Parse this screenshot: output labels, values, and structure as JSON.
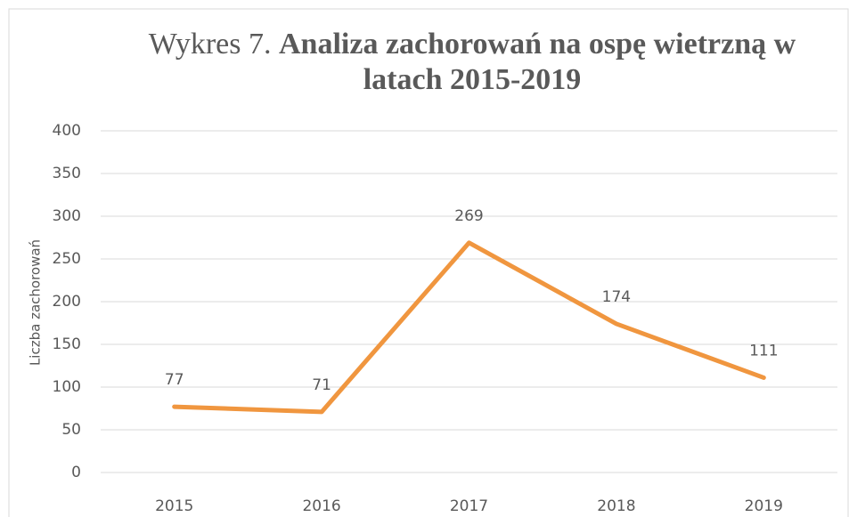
{
  "chart_data": {
    "type": "line",
    "title": [
      "Wykres 7.",
      "Analiza zachorowań na ospę wietrzną w latach 2015-2019"
    ],
    "ylabel": "Liczba zachorowań",
    "categories": [
      "2015",
      "2016",
      "2017",
      "2018",
      "2019"
    ],
    "series": [
      {
        "name": "Liczba zachorowań",
        "color": "#f0963f",
        "values": [
          77,
          71,
          269,
          174,
          111
        ]
      }
    ],
    "ylim": [
      0,
      400
    ],
    "yticks": [
      0,
      50,
      100,
      150,
      200,
      250,
      300,
      350,
      400
    ],
    "grid": true,
    "data_labels": true
  }
}
